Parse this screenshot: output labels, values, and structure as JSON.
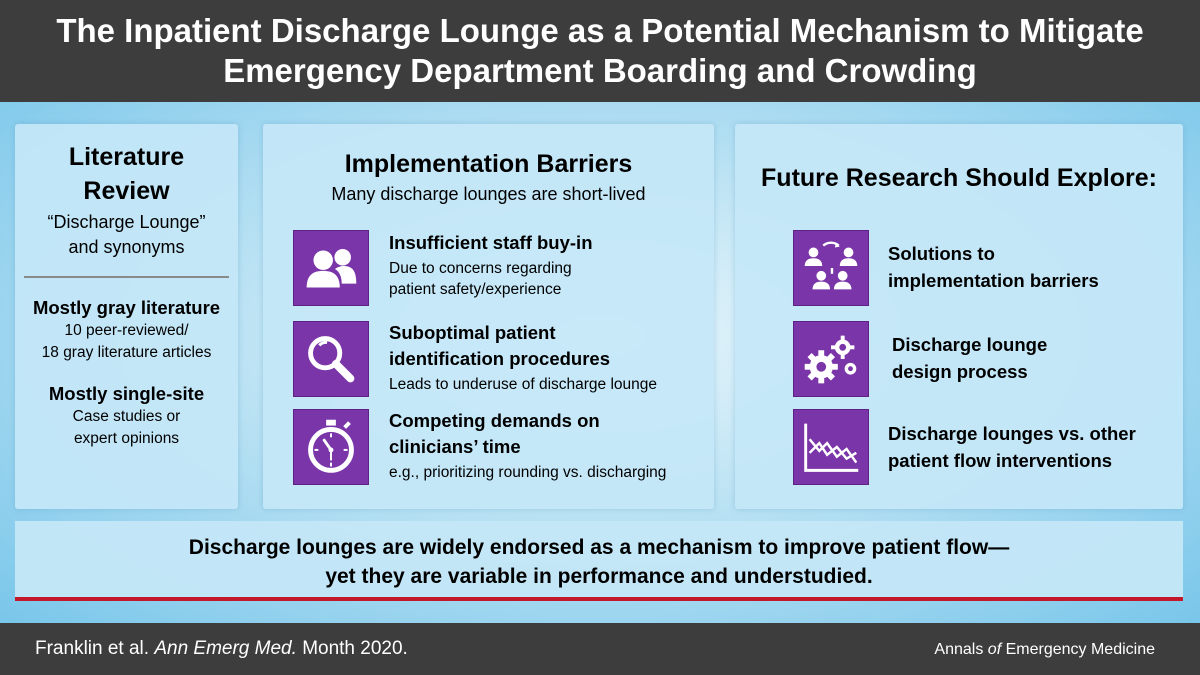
{
  "title": {
    "line1": "The Inpatient Discharge Lounge as a Potential Mechanism to Mitigate",
    "line2": "Emergency Department Boarding and Crowding"
  },
  "literature": {
    "title_line1": "Literature",
    "title_line2": "Review",
    "subtitle_line1": "“Discharge Lounge”",
    "subtitle_line2": "and synonyms",
    "finding1_head": "Mostly gray literature",
    "finding1_line1": "10 peer-reviewed/",
    "finding1_line2": "18 gray literature articles",
    "finding2_head": "Mostly single-site",
    "finding2_line1": "Case studies or",
    "finding2_line2": "expert opinions"
  },
  "barriers": {
    "title": "Implementation Barriers",
    "subtitle": "Many discharge lounges are short-lived",
    "items": [
      {
        "icon": "people-icon",
        "head_line1": "Insufficient staff buy-in",
        "head_line2": "",
        "body_line1": "Due to concerns regarding",
        "body_line2": "patient safety/experience"
      },
      {
        "icon": "magnifier-icon",
        "head_line1": "Suboptimal patient",
        "head_line2": "identification procedures",
        "body_line1": "Leads to underuse of discharge lounge",
        "body_line2": ""
      },
      {
        "icon": "stopwatch-icon",
        "head_line1": "Competing demands on",
        "head_line2": "clinicians’ time",
        "body_line1": "e.g., prioritizing rounding vs. discharging",
        "body_line2": ""
      }
    ]
  },
  "future": {
    "title": "Future Research Should Explore:",
    "items": [
      {
        "icon": "cycle-people-icon",
        "line1": "Solutions to",
        "line2": "implementation barriers"
      },
      {
        "icon": "gears-icon",
        "line1": "Discharge lounge",
        "line2": "design process"
      },
      {
        "icon": "line-chart-icon",
        "line1": "Discharge lounges vs. other",
        "line2": "patient flow interventions"
      }
    ]
  },
  "statement": {
    "line1": "Discharge lounges are widely endorsed as a mechanism to improve patient flow—",
    "line2": "yet they are variable in performance and understudied."
  },
  "footer": {
    "authors": "Franklin et al.",
    "journal_abbrev": "Ann Emerg Med.",
    "date": "Month 2020.",
    "journal_pre": "Annals",
    "journal_of": "of",
    "journal_post": "Emergency Medicine"
  },
  "colors": {
    "icon_purple": "#7a35a8",
    "accent_red": "#c3172a",
    "bar_gray": "#3d3d3d"
  }
}
